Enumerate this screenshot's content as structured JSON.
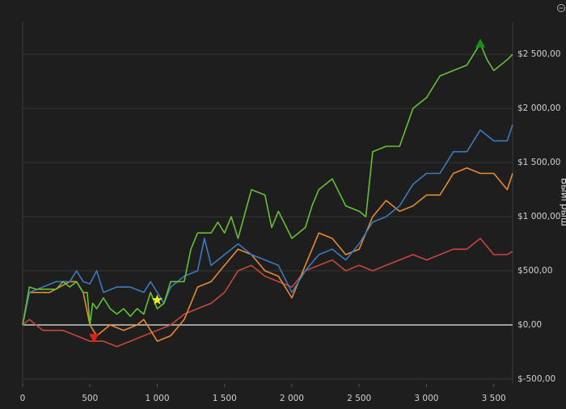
{
  "chart_data": {
    "type": "line",
    "y_axis_label": "Выигрыш",
    "xlim": [
      0,
      3640
    ],
    "ylim": [
      -545,
      2800
    ],
    "grid": true,
    "zero_line": true,
    "xticks": [
      0,
      500,
      {
        "value": 1000,
        "label": "1 000"
      },
      {
        "value": 1500,
        "label": "1 500"
      },
      {
        "value": 2000,
        "label": "2 000"
      },
      {
        "value": 2500,
        "label": "2 500"
      },
      {
        "value": 3000,
        "label": "3 000"
      },
      {
        "value": 3500,
        "label": "3 500"
      }
    ],
    "yticks": [
      {
        "value": -500,
        "label": "$-500,00"
      },
      {
        "value": 0,
        "label": "$0,00"
      },
      {
        "value": 500,
        "label": "$500,00"
      },
      {
        "value": 1000,
        "label": "$1 000,00"
      },
      {
        "value": 1500,
        "label": "$1 500,00"
      },
      {
        "value": 2000,
        "label": "$2 000,00"
      },
      {
        "value": 2500,
        "label": "$2 500,00"
      }
    ],
    "series": [
      {
        "color": "#c9453c",
        "x": [
          0,
          50,
          150,
          300,
          400,
          500,
          600,
          700,
          800,
          900,
          1000,
          1100,
          1200,
          1300,
          1400,
          1500,
          1600,
          1700,
          1800,
          1900,
          2000,
          2100,
          2200,
          2300,
          2400,
          2500,
          2600,
          2700,
          2800,
          2900,
          3000,
          3100,
          3200,
          3300,
          3400,
          3500,
          3600,
          3640
        ],
        "values": [
          0,
          50,
          -50,
          -50,
          -100,
          -150,
          -150,
          -200,
          -150,
          -100,
          -50,
          0,
          100,
          150,
          200,
          300,
          500,
          550,
          450,
          400,
          350,
          500,
          550,
          600,
          500,
          550,
          500,
          550,
          600,
          650,
          600,
          650,
          700,
          700,
          800,
          650,
          650,
          680
        ]
      },
      {
        "color": "#e8892f",
        "x": [
          0,
          50,
          200,
          350,
          400,
          450,
          500,
          550,
          650,
          750,
          850,
          900,
          1000,
          1100,
          1200,
          1300,
          1400,
          1500,
          1600,
          1700,
          1800,
          1900,
          2000,
          2100,
          2200,
          2300,
          2400,
          2500,
          2600,
          2700,
          2800,
          2900,
          3000,
          3100,
          3200,
          3300,
          3400,
          3500,
          3600,
          3640
        ],
        "values": [
          0,
          300,
          300,
          400,
          400,
          300,
          0,
          -100,
          0,
          -50,
          0,
          50,
          -150,
          -100,
          50,
          350,
          400,
          550,
          700,
          650,
          500,
          450,
          250,
          550,
          850,
          800,
          650,
          700,
          1000,
          1150,
          1050,
          1100,
          1200,
          1200,
          1400,
          1450,
          1400,
          1400,
          1250,
          1400
        ]
      },
      {
        "color": "#3a7bbf",
        "x": [
          0,
          50,
          150,
          250,
          350,
          400,
          450,
          500,
          550,
          600,
          700,
          800,
          900,
          950,
          1050,
          1100,
          1200,
          1300,
          1350,
          1400,
          1500,
          1600,
          1700,
          1800,
          1900,
          2000,
          2100,
          2200,
          2300,
          2400,
          2500,
          2600,
          2700,
          2800,
          2900,
          3000,
          3100,
          3200,
          3300,
          3400,
          3500,
          3600,
          3640
        ],
        "values": [
          0,
          300,
          350,
          400,
          400,
          500,
          400,
          380,
          500,
          300,
          350,
          350,
          300,
          400,
          200,
          350,
          450,
          500,
          800,
          550,
          650,
          750,
          650,
          600,
          550,
          300,
          500,
          650,
          700,
          600,
          750,
          950,
          1000,
          1100,
          1300,
          1400,
          1400,
          1600,
          1600,
          1800,
          1700,
          1700,
          1850
        ]
      },
      {
        "color": "#63c132",
        "x": [
          0,
          50,
          100,
          250,
          300,
          350,
          400,
          450,
          480,
          500,
          520,
          550,
          600,
          650,
          700,
          750,
          800,
          850,
          900,
          950,
          1000,
          1050,
          1100,
          1200,
          1250,
          1300,
          1400,
          1450,
          1500,
          1550,
          1600,
          1700,
          1800,
          1850,
          1900,
          2000,
          2100,
          2150,
          2200,
          2300,
          2400,
          2500,
          2550,
          2600,
          2700,
          2800,
          2900,
          3000,
          3100,
          3200,
          3300,
          3400,
          3450,
          3500,
          3600,
          3640
        ],
        "values": [
          0,
          350,
          330,
          330,
          400,
          350,
          400,
          300,
          300,
          0,
          200,
          150,
          250,
          150,
          100,
          150,
          80,
          150,
          100,
          300,
          150,
          200,
          400,
          400,
          700,
          850,
          850,
          950,
          850,
          1000,
          800,
          1250,
          1200,
          900,
          1050,
          800,
          900,
          1100,
          1250,
          1350,
          1100,
          1050,
          1000,
          1600,
          1650,
          1650,
          2000,
          2100,
          2300,
          2350,
          2400,
          2600,
          2450,
          2350,
          2450,
          2500
        ]
      }
    ],
    "markers": [
      {
        "x": 3400,
        "y": 2600,
        "shape": "triangle-up",
        "color": "#1e8a1e"
      },
      {
        "x": 530,
        "y": -120,
        "shape": "triangle-down",
        "color": "#e0201a"
      },
      {
        "x": 1000,
        "y": 230,
        "shape": "star",
        "color": "#f2f21a"
      }
    ]
  }
}
